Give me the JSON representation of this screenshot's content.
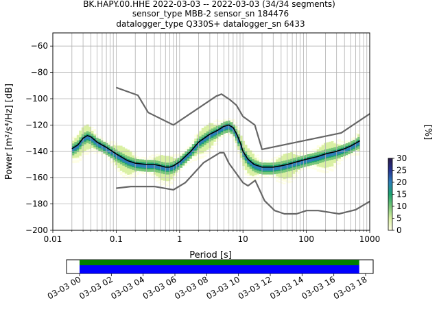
{
  "chart_data": [
    {
      "type": "heatmap",
      "title_lines": [
        "BK.HAPY.00.HHE   2022-03-03 -- 2022-03-03  (34/34 segments)",
        "sensor_type MBB-2 sensor_sn 184476",
        "datalogger_type Q330S+ datalogger_sn 6433"
      ],
      "xlabel": "Period [s]",
      "ylabel": "Power [m²/s⁴/Hz] [dB]",
      "xscale": "log",
      "xlim": [
        0.01,
        1000
      ],
      "ylim": [
        -200,
        -50
      ],
      "xticks": [
        {
          "value": 0.01,
          "label": "0.01"
        },
        {
          "value": 0.1,
          "label": "0.1"
        },
        {
          "value": 1,
          "label": "1"
        },
        {
          "value": 10,
          "label": "10"
        },
        {
          "value": 100,
          "label": "100"
        },
        {
          "value": 1000,
          "label": "1000"
        }
      ],
      "yticks": [
        {
          "value": -60,
          "label": "−60"
        },
        {
          "value": -80,
          "label": "−80"
        },
        {
          "value": -100,
          "label": "−100"
        },
        {
          "value": -120,
          "label": "−120"
        },
        {
          "value": -140,
          "label": "−140"
        },
        {
          "value": -160,
          "label": "−160"
        },
        {
          "value": -180,
          "label": "−180"
        },
        {
          "value": -200,
          "label": "−200"
        }
      ],
      "grid": true,
      "colorbar": {
        "label": "[%]",
        "range": [
          0,
          30
        ],
        "ticks": [
          {
            "value": 0,
            "label": "0"
          },
          {
            "value": 5,
            "label": "5"
          },
          {
            "value": 10,
            "label": "10"
          },
          {
            "value": 15,
            "label": "15"
          },
          {
            "value": 20,
            "label": "20"
          },
          {
            "value": 25,
            "label": "25"
          },
          {
            "value": 30,
            "label": "30"
          }
        ],
        "colors": [
          "#ffffe5",
          "#d9f0a3",
          "#78c679",
          "#1da36f",
          "#2c7fb8",
          "#253494",
          "#2a1a4a"
        ]
      },
      "series": [
        {
          "role": "mean",
          "color": "#000000",
          "x": [
            0.02,
            0.025,
            0.03,
            0.035,
            0.04,
            0.05,
            0.07,
            0.1,
            0.15,
            0.2,
            0.3,
            0.4,
            0.5,
            0.6,
            0.7,
            0.8,
            1.0,
            1.5,
            2,
            3,
            4,
            5,
            6,
            7,
            8,
            9,
            10,
            12,
            15,
            20,
            30,
            40,
            50,
            70,
            100,
            150,
            200,
            300,
            400,
            500,
            700
          ],
          "y": [
            -138,
            -135,
            -130,
            -128,
            -129,
            -133,
            -137,
            -142,
            -147,
            -149,
            -150,
            -150,
            -151,
            -152,
            -152,
            -151,
            -148,
            -140,
            -133,
            -127,
            -124,
            -121,
            -120,
            -122,
            -127,
            -133,
            -140,
            -146,
            -150,
            -152,
            -152,
            -151,
            -150,
            -148,
            -146,
            -144,
            -142,
            -140,
            -138,
            -136,
            -132
          ]
        },
        {
          "role": "high-noise-model",
          "color": "#666666",
          "x": [
            0.1,
            0.22,
            0.32,
            0.8,
            3.8,
            4.6,
            6.3,
            7.9,
            10,
            15.4,
            20,
            354.8,
            1000
          ],
          "y": [
            -91.5,
            -97.4,
            -110.5,
            -120.0,
            -98.0,
            -96.5,
            -101.0,
            -105.0,
            -113.5,
            -120.0,
            -138.5,
            -126.0,
            -111.5
          ]
        },
        {
          "role": "low-noise-model",
          "color": "#666666",
          "x": [
            0.1,
            0.17,
            0.4,
            0.8,
            1.24,
            2.4,
            4.3,
            5.0,
            6.0,
            10.0,
            12.0,
            15.6,
            21.9,
            31.6,
            45.0,
            70.0,
            101.0,
            154.0,
            328.0,
            600.0,
            1000
          ],
          "y": [
            -168.0,
            -166.7,
            -166.7,
            -169.2,
            -163.7,
            -148.6,
            -141.1,
            -141.1,
            -149.0,
            -163.8,
            -166.2,
            -162.1,
            -177.5,
            -185.0,
            -187.5,
            -187.5,
            -185.0,
            -185.0,
            -187.5,
            -184.4,
            -178.0
          ]
        }
      ]
    },
    {
      "type": "timeline",
      "xlim": [
        "03-03 00",
        "03-03 18"
      ],
      "tick_labels": [
        "03-03 00",
        "03-03 02",
        "03-03 04",
        "03-03 06",
        "03-03 08",
        "03-03 10",
        "03-03 12",
        "03-03 14",
        "03-03 16",
        "03-03 18"
      ],
      "tick_hours": [
        0,
        2,
        4,
        6,
        8,
        10,
        12,
        14,
        16,
        18
      ],
      "data_coverage_hours": [
        0,
        17.6
      ],
      "psd_coverage_hours": [
        0,
        17.6
      ],
      "data_color": "#0000ff",
      "psd_color": "#008000"
    }
  ]
}
